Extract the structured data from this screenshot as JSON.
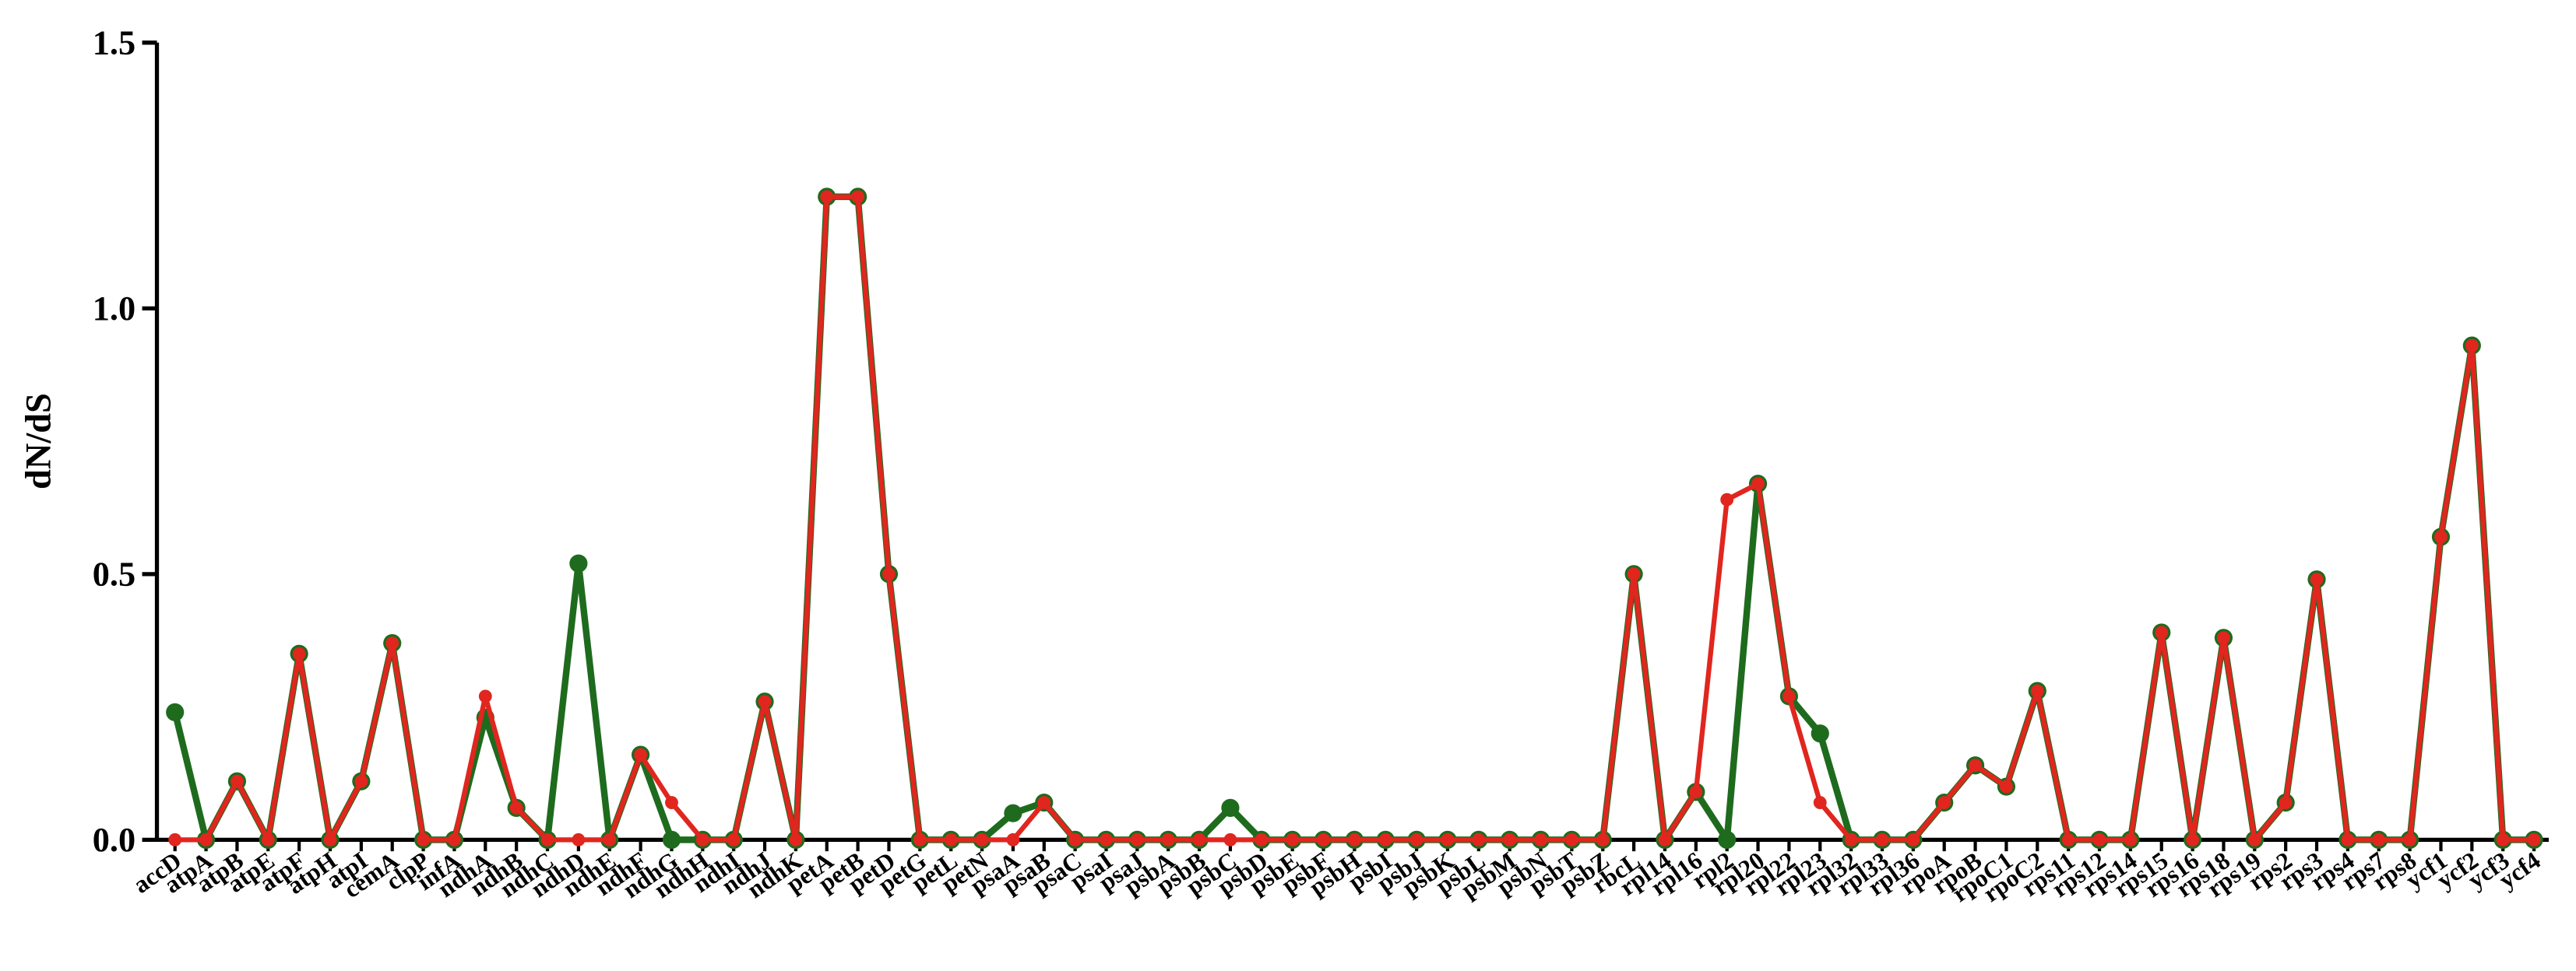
{
  "chart_data": {
    "type": "line",
    "y_label": "dN/dS",
    "categories": [
      "accD",
      "atpA",
      "atpB",
      "atpE",
      "atpF",
      "atpH",
      "atpI",
      "cemA",
      "clpP",
      "infA",
      "ndhA",
      "ndhB",
      "ndhC",
      "ndhD",
      "ndhE",
      "ndhF",
      "ndhG",
      "ndhH",
      "ndhI",
      "ndhJ",
      "ndhK",
      "petA",
      "petB",
      "petD",
      "petG",
      "petL",
      "petN",
      "psaA",
      "psaB",
      "psaC",
      "psaI",
      "psaJ",
      "psbA",
      "psbB",
      "psbC",
      "psbD",
      "psbE",
      "psbF",
      "psbH",
      "psbI",
      "psbJ",
      "psbK",
      "psbL",
      "psbM",
      "psbN",
      "psbT",
      "psbZ",
      "rbcL",
      "rpl14",
      "rpl16",
      "rpl2",
      "rpl20",
      "rpl22",
      "rpl23",
      "rpl32",
      "rpl33",
      "rpl36",
      "rpoA",
      "rpoB",
      "rpoC1",
      "rpoC2",
      "rps11",
      "rps12",
      "rps14",
      "rps15",
      "rps16",
      "rps18",
      "rps19",
      "rps2",
      "rps3",
      "rps4",
      "rps7",
      "rps8",
      "ycf1",
      "ycf2",
      "ycf3",
      "ycf4"
    ],
    "series": [
      {
        "color": "#1e6b1e",
        "values": [
          0.24,
          0,
          0.11,
          0,
          0.35,
          0,
          0.11,
          0.37,
          0,
          0,
          0.23,
          0.06,
          0,
          0.52,
          0,
          0.16,
          0,
          0,
          0,
          0.26,
          0,
          1.21,
          1.21,
          0.5,
          0,
          0,
          0,
          0.05,
          0.07,
          0,
          0,
          0,
          0,
          0,
          0.06,
          0,
          0,
          0,
          0,
          0,
          0,
          0,
          0,
          0,
          0,
          0,
          0,
          0.5,
          0,
          0.09,
          0,
          0.67,
          0.27,
          0.2,
          0,
          0,
          0,
          0.07,
          0.14,
          0.1,
          0.28,
          0,
          0,
          0,
          0.39,
          0,
          0.38,
          0,
          0.07,
          0.49,
          0,
          0,
          0,
          0.57,
          0.93,
          0,
          0
        ]
      },
      {
        "color": "#e0261e",
        "values": [
          0,
          0,
          0.11,
          0,
          0.35,
          0,
          0.11,
          0.37,
          0,
          0,
          0.27,
          0.06,
          0,
          0,
          0,
          0.16,
          0.07,
          0,
          0,
          0.26,
          0,
          1.21,
          1.21,
          0.5,
          0,
          0,
          0,
          0,
          0.07,
          0,
          0,
          0,
          0,
          0,
          0,
          0,
          0,
          0,
          0,
          0,
          0,
          0,
          0,
          0,
          0,
          0,
          0,
          0.5,
          0,
          0.09,
          0.64,
          0.67,
          0.27,
          0.07,
          0,
          0,
          0,
          0.07,
          0.14,
          0.1,
          0.28,
          0,
          0,
          0,
          0.39,
          0,
          0.38,
          0,
          0.07,
          0.49,
          0,
          0,
          0,
          0.57,
          0.93,
          0,
          0
        ]
      }
    ],
    "ylim": [
      0,
      1.5
    ],
    "yticks": [
      {
        "value": 0,
        "label": "0.0"
      },
      0.5,
      {
        "value": 1,
        "label": "1.0"
      },
      1.5
    ]
  }
}
